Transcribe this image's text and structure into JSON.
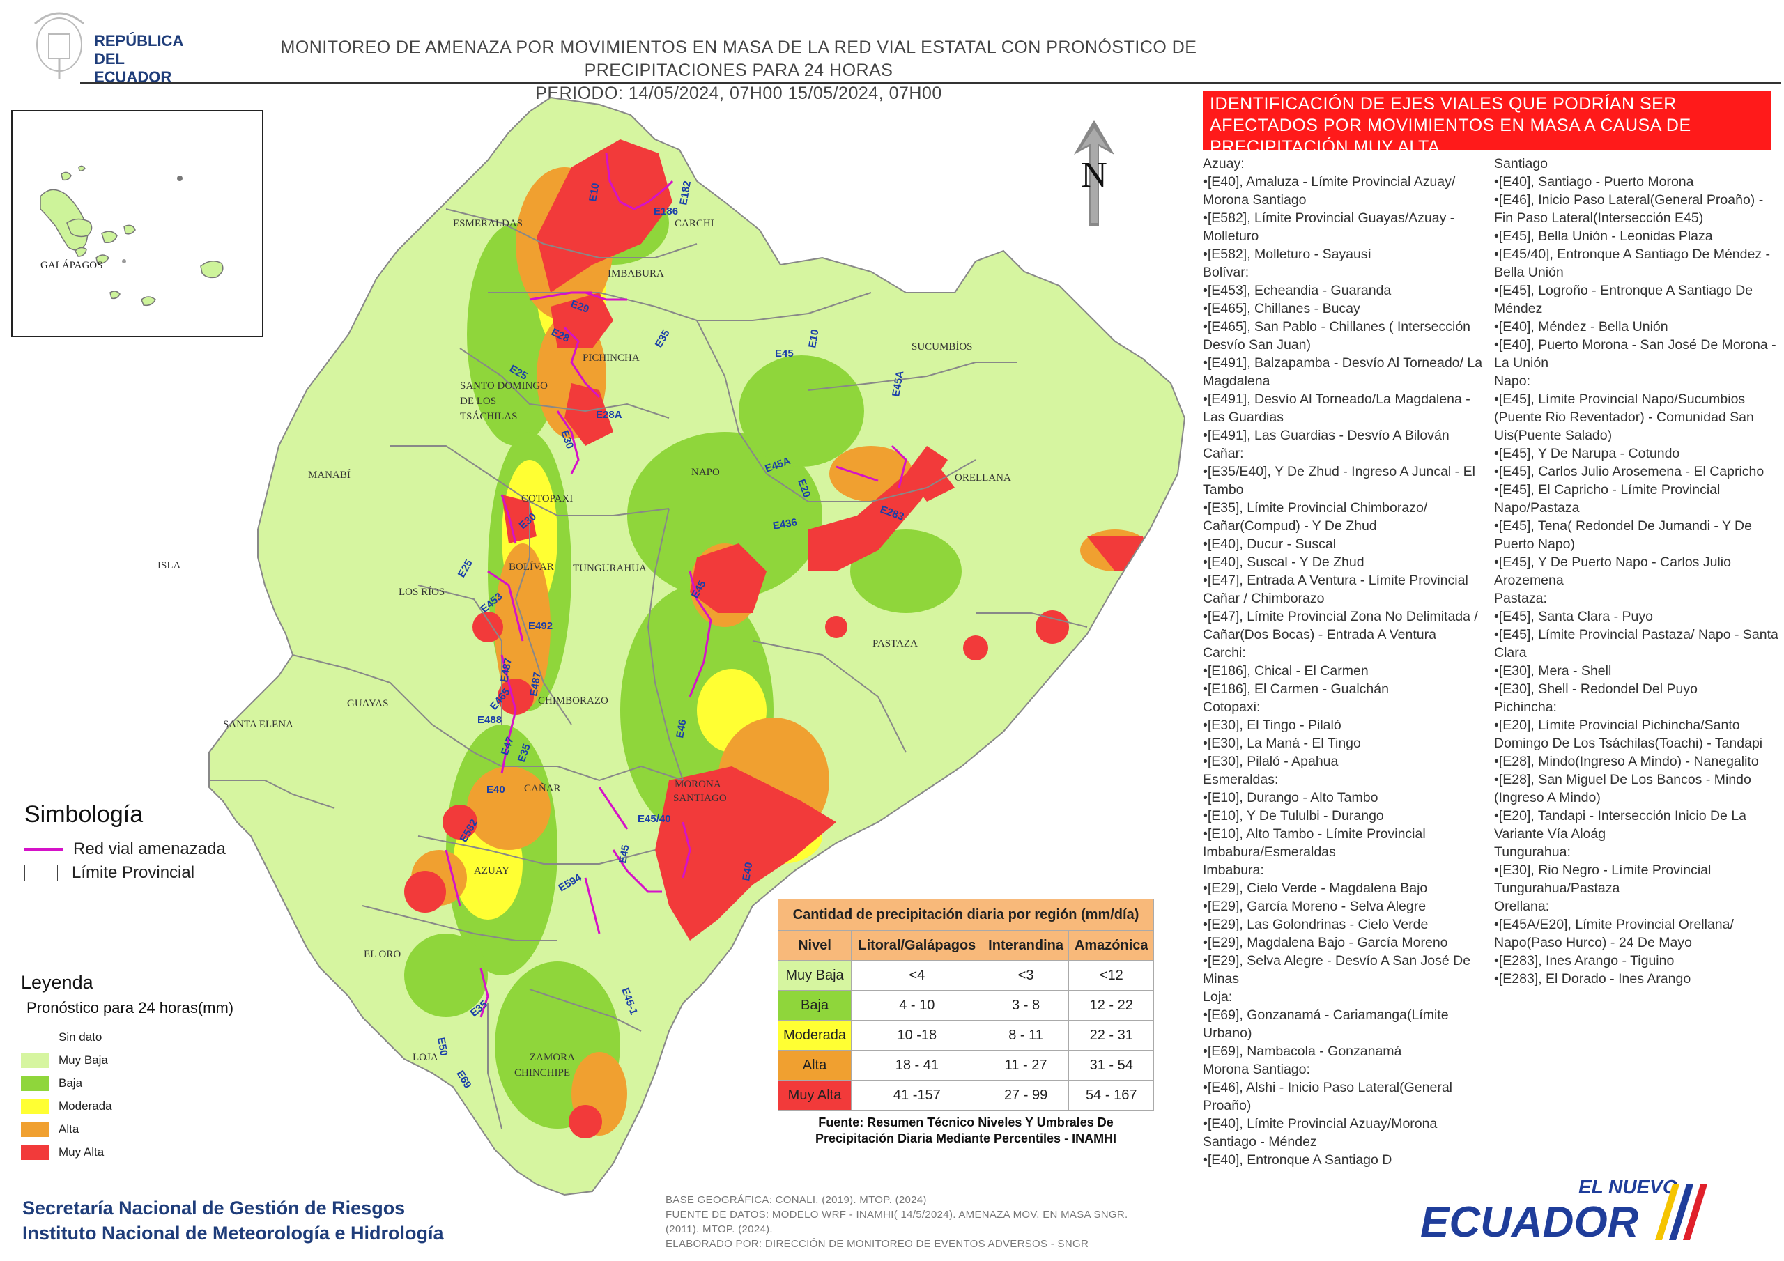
{
  "header": {
    "org_line1": "REPÚBLICA",
    "org_line2": "DEL ECUADOR",
    "title_line1": "MONITOREO DE AMENAZA POR MOVIMIENTOS EN MASA DE LA RED VIAL  ESTATAL  CON PRONÓSTICO  DE  PRECIPITACIONES PARA 24 HORAS",
    "title_line2": "PERIODO: 14/05/2024, 07H00 15/05/2024, 07H00"
  },
  "north_label": "N",
  "inset_label": "GALÁPAGOS",
  "provinces": [
    "ESMERALDAS",
    "CARCHI",
    "IMBABURA",
    "SUCUMBÍOS",
    "PICHINCHA",
    "SANTO DOMINGO",
    "DE LOS",
    "TSÁCHILAS",
    "MANABÍ",
    "NAPO",
    "ORELLANA",
    "COTOPAXI",
    "ISLA",
    "BOLÍVAR",
    "TUNGURAHUA",
    "LOS RÍOS",
    "PASTAZA",
    "GUAYAS",
    "CHIMBORAZO",
    "SANTA ELENA",
    "CAÑAR",
    "MORONA",
    "SANTIAGO",
    "AZUAY",
    "EL ORO",
    "LOJA",
    "ZAMORA",
    "CHINCHIPE"
  ],
  "road_labels": [
    "E10",
    "E182",
    "E186",
    "E29",
    "E28",
    "E35",
    "E45",
    "E10",
    "E25",
    "E28A",
    "E30",
    "E45A",
    "E45A",
    "E20",
    "E436",
    "E283",
    "E30",
    "E25",
    "E453",
    "E45",
    "E492",
    "E487",
    "E487",
    "E465",
    "E488",
    "E47",
    "E35",
    "E46",
    "E40",
    "E582",
    "E45/40",
    "E45",
    "E594",
    "E40",
    "E45-1",
    "E35",
    "E50",
    "E69"
  ],
  "banner": "IDENTIFICACIÓN DE EJES VIALES QUE PODRÍAN SER AFECTADOS POR MOVIMIENTOS EN MASA A CAUSA DE PRECIPITACIÓN MUY ALTA",
  "road_list_col1": [
    "Azuay:",
    "•[E40], Amaluza - Límite Provincial Azuay/ Morona Santiago",
    "•[E582], Límite Provincial Guayas/Azuay - Molleturo",
    "•[E582], Molleturo - Sayausí",
    "Bolívar:",
    "•[E453], Echeandia - Guaranda",
    "•[E465], Chillanes - Bucay",
    "•[E465], San Pablo - Chillanes ( Intersección Desvío San Juan)",
    "•[E491], Balzapamba - Desvío Al Torneado/ La Magdalena",
    "•[E491], Desvío Al Torneado/La Magdalena - Las Guardias",
    "•[E491], Las Guardias - Desvío A Bilován",
    "Cañar:",
    "•[E35/E40], Y De Zhud - Ingreso A Juncal - El Tambo",
    "•[E35], Límite Provincial Chimborazo/ Cañar(Compud) - Y De Zhud",
    "•[E40], Ducur - Suscal",
    "•[E40], Suscal - Y De Zhud",
    "•[E47], Entrada A Ventura -  Límite Provincial Cañar / Chimborazo",
    "•[E47], Límite Provincial Zona No Delimitada / Cañar(Dos Bocas) - Entrada  A Ventura",
    "Carchi:",
    "•[E186], Chical - El Carmen",
    "•[E186], El Carmen - Gualchán",
    "Cotopaxi:",
    "•[E30], El Tingo - Pilaló",
    "•[E30], La Maná - El Tingo",
    "•[E30], Pilaló - Apahua",
    "Esmeraldas:",
    "•[E10], Durango - Alto Tambo",
    "•[E10], Y De Tululbi - Durango",
    "•[E10], Alto Tambo - Límite Provincial Imbabura/Esmeraldas",
    "Imbabura:",
    "•[E29], Cielo Verde - Magdalena Bajo",
    "•[E29], García Moreno - Selva  Alegre",
    "•[E29], Las Golondrinas - Cielo Verde",
    "•[E29], Magdalena Bajo - García Moreno",
    "•[E29], Selva  Alegre - Desvío  A San José De Minas",
    "Loja:",
    "•[E69], Gonzanamá - Cariamanga(Límite Urbano)",
    "•[E69], Nambacola - Gonzanamá",
    "Morona Santiago:",
    "•[E46], Alshi - Inicio Paso Lateral(General Proaño)",
    "•[E40], Límite Provincial Azuay/Morona Santiago - Méndez",
    "•[E40], Entronque A Santiago D"
  ],
  "road_list_col2": [
    "Santiago",
    "•[E40], Santiago - Puerto Morona",
    "•[E46], Inicio Paso Lateral(General Proaño) - Fin Paso Lateral(Intersección E45)",
    "•[E45], Bella Unión - Leonidas Plaza",
    "•[E45/40], Entronque A Santiago De Méndez - Bella Unión",
    "•[E45], Logroño - Entronque A Santiago De Méndez",
    "•[E40], Méndez - Bella Unión",
    "•[E40], Puerto Morona - San José De Morona - La Unión",
    "Napo:",
    "•[E45], Límite Provincial Napo/Sucumbios (Puente Rio Reventador) - Comunidad San Uis(Puente Salado)",
    "•[E45], Y De Narupa - Cotundo",
    "•[E45], Carlos Julio Arosemena - El Capricho",
    "•[E45], El Capricho - Límite Provincial Napo/Pastaza",
    "•[E45], Tena( Redondel De Jumandi - Y De Puerto Napo)",
    "•[E45], Y De Puerto Napo - Carlos Julio Arozemena",
    "Pastaza:",
    "•[E45], Santa Clara - Puyo",
    "•[E45], Límite Provincial Pastaza/ Napo - Santa Clara",
    "•[E30], Mera - Shell",
    "•[E30], Shell - Redondel Del Puyo",
    "Pichincha:",
    "•[E20], Límite Provincial Pichincha/Santo Domingo De Los Tsáchilas(Toachi) - Tandapi",
    "•[E28], Mindo(Ingreso A Mindo) - Nanegalito",
    "•[E28], San Miguel De Los Bancos - Mindo (Ingreso A Mindo)",
    "•[E20], Tandapi - Intersección Inicio De La Variante Vía Aloág",
    "Tungurahua:",
    "•[E30], Rio Negro - Límite Provincial Tungurahua/Pastaza",
    "Orellana:",
    "•[E45A/E20], Límite Provincial Orellana/ Napo(Paso Hurco) - 24 De Mayo",
    "•[E283], Ines Arango - Tiguino",
    "•[E283], El Dorado - Ines Arango"
  ],
  "simbologia": {
    "title": "Simbología",
    "road_label": "Red vial amenazada",
    "boundary_label": "Límite Provincial",
    "road_color": "#d512c8"
  },
  "leyenda": {
    "title": "Leyenda",
    "subtitle": "Pronóstico para 24 horas(mm)",
    "items": [
      {
        "label": "Sin dato",
        "color": "#ffffff"
      },
      {
        "label": "Muy Baja",
        "color": "#d6f5a0"
      },
      {
        "label": "Baja",
        "color": "#8fd63b"
      },
      {
        "label": "Moderada",
        "color": "#ffff33"
      },
      {
        "label": "Alta",
        "color": "#f0a030"
      },
      {
        "label": "Muy Alta",
        "color": "#f23a3a"
      }
    ]
  },
  "precip_table": {
    "caption": "Cantidad de precipitación diaria por región (mm/día)",
    "headers": [
      "Nivel",
      "Litoral/Galápagos",
      "Interandina",
      "Amazónica"
    ],
    "rows": [
      {
        "level": "Muy Baja",
        "color": "#d6f5a0",
        "values": [
          "<4",
          "<3",
          "<12"
        ]
      },
      {
        "level": "Baja",
        "color": "#8fd63b",
        "values": [
          "4 - 10",
          "3 - 8",
          "12 - 22"
        ]
      },
      {
        "level": "Moderada",
        "color": "#ffff33",
        "values": [
          "10 -18",
          "8 - 11",
          "22 - 31"
        ]
      },
      {
        "level": "Alta",
        "color": "#f0a030",
        "values": [
          "18 - 41",
          "11 - 27",
          "31 - 54"
        ]
      },
      {
        "level": "Muy Alta",
        "color": "#f23a3a",
        "values": [
          "41 -157",
          "27 - 99",
          "54 - 167"
        ]
      }
    ],
    "source_line1": "Fuente: Resumen Técnico Niveles Y Umbrales De",
    "source_line2": "Precipitación Diaria Mediante Percentiles - INAMHI"
  },
  "footer": {
    "org1": "Secretaría Nacional de Gestión de Riesgos",
    "org2": "Instituto Nacional de Meteorología e Hidrología",
    "credit1": "BASE GEOGRÁFICA: CONALI. (2019). MTOP. (2024)",
    "credit2": "FUENTE DE DATOS: MODELO WRF - INAMHI( 14/5/2024).  AMENAZA MOV. EN MASA SNGR.",
    "credit3": "(2011). MTOP. (2024).",
    "credit4": "ELABORADO POR: DIRECCIÓN DE MONITOREO DE EVENTOS ADVERSOS - SNGR",
    "gov_logo_top": "EL NUEVO",
    "gov_logo_main": "ECUADOR"
  }
}
